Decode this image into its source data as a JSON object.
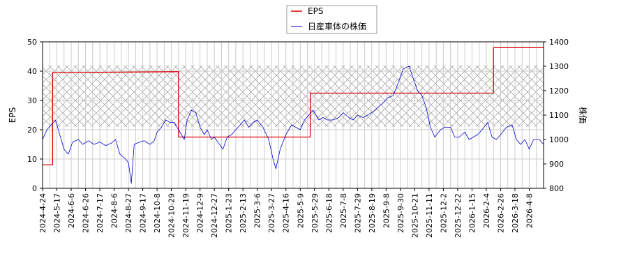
{
  "chart_data": {
    "type": "line",
    "legend": {
      "placement": "top-center",
      "entries": [
        {
          "label": "EPS",
          "color": "#dd0000"
        },
        {
          "label": "日産車体の株価",
          "color": "#0000cc"
        }
      ]
    },
    "grid": true,
    "shaded_band": {
      "axis": "left",
      "y_from": 21,
      "y_to": 42,
      "pattern": "crosshatch"
    },
    "x_axis": {
      "ticks": [
        "2024-4-24",
        "2024-5-17",
        "2024-6-6",
        "2024-6-26",
        "2024-7-17",
        "2024-8-6",
        "2024-8-27",
        "2024-9-17",
        "2024-10-8",
        "2024-10-29",
        "2024-11-19",
        "2024-12-9",
        "2024-12-27",
        "2025-1-23",
        "2025-2-13",
        "2025-3-6",
        "2025-3-27",
        "2025-4-16",
        "2025-5-9",
        "2025-5-29",
        "2025-6-18",
        "2025-7-8",
        "2025-7-29",
        "2025-8-19",
        "2025-9-8",
        "2025-9-30",
        "2025-10-21",
        "2025-11-11",
        "2025-12-2",
        "2025-12-22",
        "2026-1-15",
        "2026-2-4",
        "2026-2-26",
        "2026-3-18",
        "2026-4-8"
      ]
    },
    "y_left": {
      "label": "EPS",
      "ylim": [
        0,
        50
      ],
      "ticks": [
        0,
        10,
        20,
        30,
        40,
        50
      ]
    },
    "y_right": {
      "label": "株価",
      "ylim": [
        800,
        1400
      ],
      "ticks": [
        800,
        900,
        1000,
        1100,
        1200,
        1300,
        1400
      ]
    },
    "series": [
      {
        "name": "EPS",
        "axis": "left",
        "color": "#dd0000",
        "step": true,
        "points": [
          [
            0,
            8
          ],
          [
            0.7,
            8
          ],
          [
            0.7,
            39.5
          ],
          [
            9.5,
            39.8
          ],
          [
            9.5,
            17.5
          ],
          [
            18.7,
            17.5
          ],
          [
            18.7,
            32.5
          ],
          [
            31.5,
            32.5
          ],
          [
            31.5,
            48
          ],
          [
            35,
            48
          ]
        ]
      },
      {
        "name": "日産車体の株価",
        "axis": "right",
        "color": "#0000cc",
        "step": false,
        "points": [
          [
            0,
            1000
          ],
          [
            0.3,
            1040
          ],
          [
            0.6,
            1060
          ],
          [
            0.9,
            1080
          ],
          [
            1.2,
            1020
          ],
          [
            1.5,
            960
          ],
          [
            1.8,
            940
          ],
          [
            2.1,
            990
          ],
          [
            2.5,
            1000
          ],
          [
            2.8,
            980
          ],
          [
            3.2,
            995
          ],
          [
            3.6,
            980
          ],
          [
            4.0,
            990
          ],
          [
            4.4,
            975
          ],
          [
            4.8,
            985
          ],
          [
            5.1,
            1000
          ],
          [
            5.4,
            940
          ],
          [
            5.8,
            920
          ],
          [
            6.0,
            905
          ],
          [
            6.2,
            820
          ],
          [
            6.4,
            980
          ],
          [
            6.8,
            990
          ],
          [
            7.1,
            995
          ],
          [
            7.5,
            980
          ],
          [
            7.8,
            995
          ],
          [
            8.0,
            1030
          ],
          [
            8.3,
            1050
          ],
          [
            8.6,
            1080
          ],
          [
            8.9,
            1070
          ],
          [
            9.2,
            1070
          ],
          [
            9.5,
            1040
          ],
          [
            9.7,
            1020
          ],
          [
            9.9,
            1000
          ],
          [
            10.1,
            1080
          ],
          [
            10.4,
            1120
          ],
          [
            10.7,
            1110
          ],
          [
            11.0,
            1050
          ],
          [
            11.3,
            1020
          ],
          [
            11.5,
            1040
          ],
          [
            11.8,
            1000
          ],
          [
            12.0,
            1010
          ],
          [
            12.3,
            985
          ],
          [
            12.6,
            960
          ],
          [
            12.9,
            1010
          ],
          [
            13.2,
            1020
          ],
          [
            13.5,
            1040
          ],
          [
            13.8,
            1060
          ],
          [
            14.1,
            1080
          ],
          [
            14.4,
            1050
          ],
          [
            14.7,
            1070
          ],
          [
            15.0,
            1080
          ],
          [
            15.4,
            1050
          ],
          [
            15.8,
            1000
          ],
          [
            16.1,
            920
          ],
          [
            16.3,
            880
          ],
          [
            16.6,
            960
          ],
          [
            17.0,
            1020
          ],
          [
            17.4,
            1060
          ],
          [
            17.7,
            1050
          ],
          [
            18.0,
            1040
          ],
          [
            18.3,
            1080
          ],
          [
            18.6,
            1100
          ],
          [
            18.9,
            1120
          ],
          [
            19.3,
            1080
          ],
          [
            19.6,
            1090
          ],
          [
            19.9,
            1080
          ],
          [
            20.3,
            1080
          ],
          [
            20.7,
            1090
          ],
          [
            21.0,
            1110
          ],
          [
            21.4,
            1090
          ],
          [
            21.7,
            1080
          ],
          [
            22.0,
            1100
          ],
          [
            22.4,
            1090
          ],
          [
            22.7,
            1100
          ],
          [
            23.0,
            1110
          ],
          [
            23.4,
            1130
          ],
          [
            23.8,
            1150
          ],
          [
            24.1,
            1170
          ],
          [
            24.5,
            1180
          ],
          [
            24.9,
            1240
          ],
          [
            25.2,
            1290
          ],
          [
            25.6,
            1300
          ],
          [
            25.9,
            1250
          ],
          [
            26.2,
            1200
          ],
          [
            26.5,
            1180
          ],
          [
            26.8,
            1130
          ],
          [
            27.1,
            1050
          ],
          [
            27.4,
            1010
          ],
          [
            27.8,
            1040
          ],
          [
            28.1,
            1050
          ],
          [
            28.5,
            1050
          ],
          [
            28.8,
            1010
          ],
          [
            29.1,
            1010
          ],
          [
            29.5,
            1030
          ],
          [
            29.8,
            1000
          ],
          [
            30.1,
            1010
          ],
          [
            30.4,
            1020
          ],
          [
            30.7,
            1040
          ],
          [
            31.1,
            1070
          ],
          [
            31.4,
            1010
          ],
          [
            31.7,
            1000
          ],
          [
            32.0,
            1020
          ],
          [
            32.4,
            1050
          ],
          [
            32.8,
            1060
          ],
          [
            33.1,
            1000
          ],
          [
            33.4,
            980
          ],
          [
            33.7,
            1000
          ],
          [
            34.0,
            960
          ],
          [
            34.3,
            1000
          ],
          [
            34.7,
            1000
          ],
          [
            35,
            980
          ]
        ]
      }
    ]
  }
}
